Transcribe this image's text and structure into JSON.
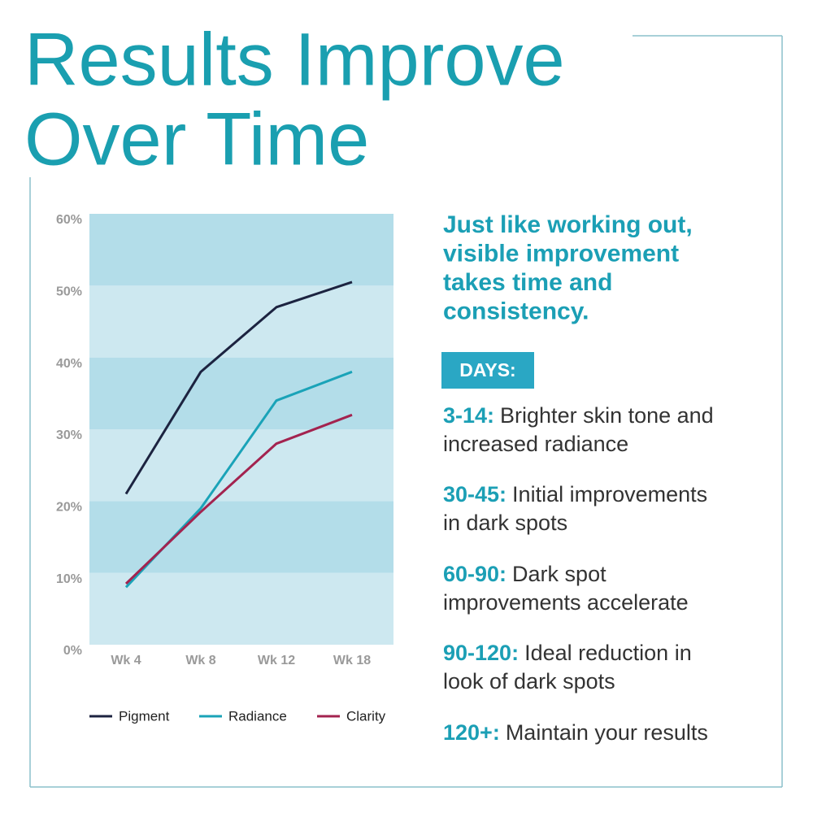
{
  "title": [
    "Results Improve",
    "Over Time"
  ],
  "headline": [
    "Just like working out,",
    "visible improvement",
    "takes time and",
    "consistency."
  ],
  "days_label": "DAYS:",
  "days": [
    {
      "range": "3-14:",
      "text": [
        "Brighter skin tone and",
        "increased radiance"
      ]
    },
    {
      "range": "30-45:",
      "text": [
        "Initial improvements",
        "in dark spots"
      ]
    },
    {
      "range": "60-90:",
      "text": [
        "Dark spot",
        "improvements accelerate"
      ]
    },
    {
      "range": "90-120:",
      "text": [
        "Ideal reduction in",
        "look of dark spots"
      ]
    },
    {
      "range": "120+:",
      "text": [
        "Maintain your results"
      ]
    }
  ],
  "chart_data": {
    "type": "line",
    "categories": [
      "Wk 4",
      "Wk 8",
      "Wk 12",
      "Wk 18"
    ],
    "series": [
      {
        "name": "Pigment",
        "color": "#1c2340",
        "values": [
          21,
          38,
          47,
          50.5
        ]
      },
      {
        "name": "Radiance",
        "color": "#1aa3b8",
        "values": [
          8,
          19,
          34,
          38
        ]
      },
      {
        "name": "Clarity",
        "color": "#a3234f",
        "values": [
          8.5,
          18.5,
          28,
          32
        ]
      }
    ],
    "ylim": [
      0,
      60
    ],
    "yticks": [
      {
        "value": 0,
        "label": "0%"
      },
      {
        "value": 10,
        "label": "10%"
      },
      {
        "value": 20,
        "label": "20%"
      },
      {
        "value": 30,
        "label": "30%"
      },
      {
        "value": 40,
        "label": "40%"
      },
      {
        "value": 50,
        "label": "50%"
      },
      {
        "value": 60,
        "label": "60%"
      }
    ],
    "legend": "bottom"
  }
}
